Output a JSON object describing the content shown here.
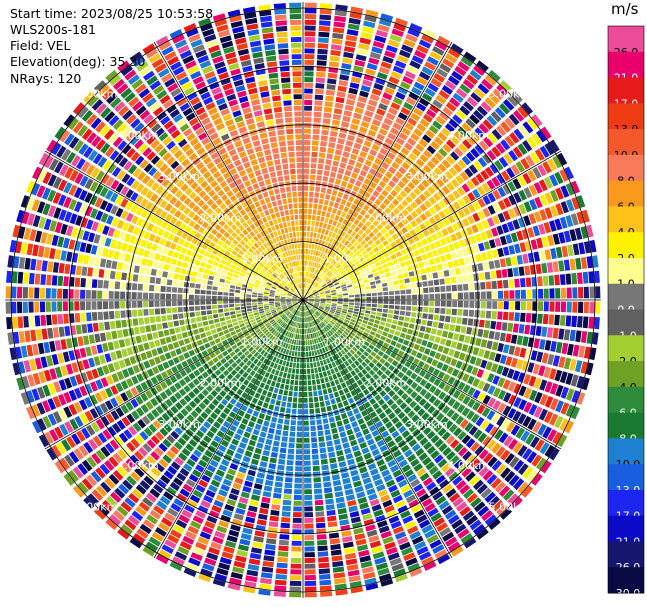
{
  "header": {
    "start_time": "Start time: 2023/08/25 10:53:58",
    "instrument": "WLS200s-181",
    "field": "Field: VEL",
    "elevation": "Elevation(deg): 35.30",
    "nrays": "NRays: 120"
  },
  "colorbar": {
    "units": "m/s",
    "bins": [
      {
        "label": "26.0",
        "color": "#ec4c9a"
      },
      {
        "label": "21.0",
        "color": "#e8006c"
      },
      {
        "label": "17.0",
        "color": "#e61a1a"
      },
      {
        "label": "13.0",
        "color": "#f03c14"
      },
      {
        "label": "10.0",
        "color": "#f5592b"
      },
      {
        "label": "8.0",
        "color": "#f97a58"
      },
      {
        "label": "6.0",
        "color": "#fa9a1c"
      },
      {
        "label": "4.0",
        "color": "#fcc21a"
      },
      {
        "label": "2.0",
        "color": "#fff200"
      },
      {
        "label": "1.0",
        "color": "#fdfd8e"
      },
      {
        "label": "0.0",
        "color": "#777777"
      },
      {
        "label": "-1.0",
        "color": "#606060"
      },
      {
        "label": "-2.0",
        "color": "#a4cf30"
      },
      {
        "label": "-4.0",
        "color": "#6fa124"
      },
      {
        "label": "-6.0",
        "color": "#2e8b3a"
      },
      {
        "label": "-8.0",
        "color": "#1a7a32"
      },
      {
        "label": "-10.0",
        "color": "#1f7fd0"
      },
      {
        "label": "-13.0",
        "color": "#1a5ee0"
      },
      {
        "label": "-17.0",
        "color": "#1c26f0"
      },
      {
        "label": "-21.0",
        "color": "#0a0ac8"
      },
      {
        "label": "-26.0",
        "color": "#16166e"
      },
      {
        "label": "-30.0",
        "color": "#0a0a44"
      }
    ]
  },
  "chart_data": {
    "type": "heatmap",
    "projection": "polar PPI",
    "field": "VEL",
    "units": "m/s",
    "nrays": 120,
    "range_rings_km": [
      1.0,
      2.0,
      3.0,
      4.0,
      5.0
    ],
    "ring_labels": [
      "1.00km",
      "2.00km",
      "3.00km",
      "4.00km",
      "5.00km"
    ],
    "max_range_km": 5.1,
    "clean_range_km": 3.5,
    "colorbar_min": -30.0,
    "colorbar_max": 26.0,
    "wind_pattern": {
      "toward_direction_deg": 180,
      "max_velocity_ms": 9,
      "description": "Positive (orange/yellow) velocities to the north, negative (blue/green) to the south"
    }
  }
}
